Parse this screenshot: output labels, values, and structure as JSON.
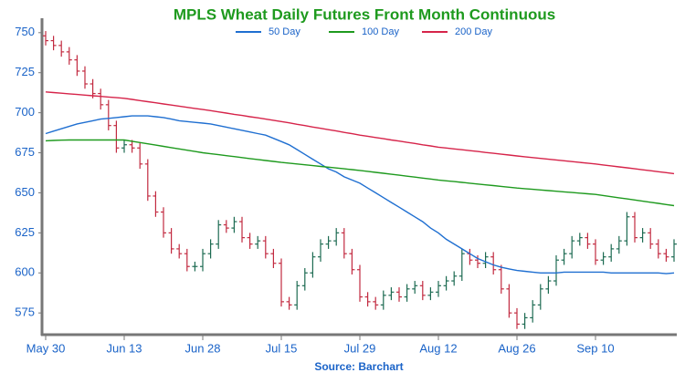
{
  "chart_data": {
    "type": "ohlc",
    "title": "MPLS Wheat Daily Futures Front Month Continuous",
    "source": "Source: Barchart",
    "categories": [
      "May 30",
      null,
      null,
      null,
      null,
      null,
      null,
      null,
      null,
      null,
      "Jun 13",
      null,
      null,
      null,
      null,
      null,
      null,
      null,
      null,
      null,
      "Jun 28",
      null,
      null,
      null,
      null,
      null,
      null,
      null,
      null,
      null,
      "Jul 15",
      null,
      null,
      null,
      null,
      null,
      null,
      null,
      null,
      null,
      "Jul 29",
      null,
      null,
      null,
      null,
      null,
      null,
      null,
      null,
      null,
      "Aug 12",
      null,
      null,
      null,
      null,
      null,
      null,
      null,
      null,
      null,
      "Aug 26",
      null,
      null,
      null,
      null,
      null,
      null,
      null,
      null,
      null,
      "Sep 10",
      null,
      null,
      null,
      null,
      null,
      null,
      null,
      null,
      null,
      null
    ],
    "open": [
      748,
      745,
      742,
      738,
      733,
      726,
      718,
      712,
      705,
      692,
      678,
      680,
      678,
      668,
      648,
      638,
      625,
      615,
      612,
      604,
      604,
      612,
      618,
      630,
      628,
      632,
      622,
      618,
      620,
      612,
      606,
      582,
      580,
      592,
      600,
      610,
      618,
      620,
      625,
      612,
      602,
      585,
      582,
      580,
      586,
      588,
      585,
      590,
      592,
      586,
      588,
      592,
      595,
      598,
      612,
      608,
      606,
      610,
      602,
      590,
      575,
      568,
      572,
      580,
      590,
      595,
      608,
      612,
      620,
      622,
      618,
      608,
      610,
      615,
      620,
      635,
      622,
      625,
      618,
      612,
      610
    ],
    "high": [
      751,
      748,
      745,
      741,
      736,
      729,
      721,
      715,
      708,
      695,
      683,
      683,
      681,
      671,
      651,
      641,
      628,
      618,
      615,
      607,
      615,
      621,
      633,
      633,
      635,
      635,
      625,
      623,
      623,
      615,
      609,
      585,
      595,
      603,
      613,
      621,
      623,
      628,
      628,
      615,
      605,
      588,
      585,
      589,
      591,
      591,
      593,
      595,
      595,
      591,
      595,
      598,
      601,
      615,
      615,
      611,
      613,
      613,
      605,
      593,
      578,
      575,
      583,
      593,
      598,
      611,
      615,
      623,
      625,
      625,
      621,
      613,
      618,
      623,
      638,
      638,
      628,
      628,
      621,
      615,
      621
    ],
    "low": [
      742,
      739,
      735,
      730,
      723,
      715,
      709,
      702,
      689,
      675,
      675,
      675,
      665,
      645,
      635,
      622,
      612,
      609,
      601,
      601,
      601,
      609,
      615,
      625,
      625,
      619,
      615,
      615,
      609,
      603,
      579,
      577,
      577,
      589,
      597,
      607,
      615,
      617,
      609,
      599,
      582,
      579,
      577,
      577,
      583,
      582,
      582,
      587,
      583,
      583,
      585,
      589,
      592,
      595,
      605,
      603,
      603,
      599,
      587,
      572,
      565,
      565,
      569,
      577,
      587,
      592,
      605,
      609,
      617,
      615,
      605,
      605,
      607,
      612,
      617,
      619,
      619,
      615,
      609,
      607,
      607
    ],
    "close": [
      745,
      742,
      738,
      733,
      726,
      718,
      712,
      705,
      692,
      678,
      680,
      678,
      668,
      648,
      638,
      625,
      615,
      612,
      604,
      604,
      612,
      618,
      630,
      628,
      632,
      622,
      618,
      620,
      612,
      606,
      582,
      580,
      592,
      600,
      610,
      618,
      620,
      625,
      612,
      602,
      585,
      582,
      580,
      586,
      588,
      585,
      590,
      592,
      586,
      588,
      592,
      595,
      598,
      612,
      608,
      606,
      610,
      602,
      590,
      575,
      568,
      572,
      580,
      590,
      595,
      608,
      612,
      620,
      622,
      618,
      608,
      610,
      615,
      620,
      635,
      622,
      625,
      618,
      612,
      610,
      618
    ],
    "up_color": "#1d6b52",
    "down_color": "#c22a40",
    "series": [
      {
        "name": "50 Day",
        "color": "#1f6fd1",
        "values": [
          687,
          688.5,
          690,
          691.5,
          693,
          694,
          695,
          696,
          696.5,
          697,
          697.5,
          698,
          698,
          698,
          697.5,
          697,
          696,
          695,
          694.5,
          694,
          693.5,
          693,
          692,
          691,
          690,
          689,
          688,
          687,
          686,
          684,
          682,
          680,
          677,
          674,
          671,
          668,
          665,
          663,
          660,
          658,
          656,
          653,
          650,
          647,
          644,
          641,
          638,
          635,
          632,
          628,
          625,
          621,
          618,
          615,
          612,
          609,
          607,
          605,
          603.5,
          602.5,
          601.5,
          601,
          600.5,
          600,
          600,
          600,
          600.5,
          600.5,
          600.5,
          600.5,
          600.5,
          600.5,
          600,
          600,
          600,
          600,
          600,
          600,
          600,
          599.5,
          600
        ]
      },
      {
        "name": "100 Day",
        "color": "#1e9a1e",
        "values": [
          682.5,
          682.7,
          682.9,
          683,
          683,
          683,
          683,
          683,
          683,
          683,
          683,
          682.2,
          681.4,
          680.6,
          679.8,
          679,
          678.2,
          677.4,
          676.6,
          675.8,
          675,
          674.4,
          673.8,
          673.2,
          672.6,
          672,
          671.4,
          670.8,
          670.2,
          669.6,
          669,
          668.5,
          668,
          667.5,
          667,
          666.5,
          666,
          665.5,
          665,
          664.5,
          664,
          663.4,
          662.8,
          662.2,
          661.6,
          661,
          660.4,
          659.8,
          659.2,
          658.6,
          658,
          657.5,
          657,
          656.5,
          656,
          655.5,
          655,
          654.5,
          654,
          653.5,
          653,
          652.6,
          652.2,
          651.8,
          651.4,
          651,
          650.6,
          650.2,
          649.8,
          649.4,
          649,
          648.3,
          647.6,
          646.9,
          646.2,
          645.5,
          644.8,
          644.1,
          643.4,
          642.7,
          642
        ]
      },
      {
        "name": "200 Day",
        "color": "#d6244a",
        "values": [
          713,
          712.6,
          712.2,
          711.8,
          711.4,
          711,
          710.6,
          710.2,
          709.8,
          709.4,
          709,
          708.3,
          707.6,
          706.9,
          706.2,
          705.5,
          704.8,
          704.1,
          703.4,
          702.7,
          702,
          701.3,
          700.5,
          699.8,
          699,
          698.3,
          697.5,
          696.8,
          696,
          695.3,
          694.5,
          693.7,
          692.8,
          692,
          691.1,
          690.3,
          689.4,
          688.6,
          687.7,
          686.9,
          686,
          685.3,
          684.5,
          683.8,
          683,
          682.3,
          681.5,
          680.8,
          680,
          679.3,
          678.5,
          678,
          677.4,
          676.9,
          676.3,
          675.8,
          675.2,
          674.7,
          674.1,
          673.6,
          673,
          672.5,
          672,
          671.5,
          671,
          670.5,
          670,
          669.5,
          669,
          668.5,
          668,
          667.4,
          666.8,
          666.2,
          665.6,
          665,
          664.4,
          663.8,
          663.2,
          662.6,
          662
        ]
      }
    ],
    "ylim": [
      562,
      759
    ],
    "yticks": [
      575,
      600,
      625,
      650,
      675,
      700,
      725,
      750
    ],
    "grid": false
  }
}
